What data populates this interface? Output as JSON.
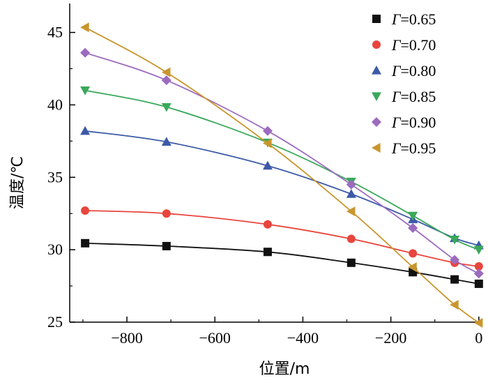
{
  "chart_data": {
    "type": "line",
    "xlabel": "位置/m",
    "ylabel": "温度/℃",
    "xlim": [
      -930,
      5
    ],
    "ylim": [
      25,
      47
    ],
    "xticks": [
      -800,
      -600,
      -400,
      -200,
      0
    ],
    "xtick_labels": [
      "−800",
      "−600",
      "−400",
      "−200",
      "0"
    ],
    "yticks": [
      25,
      30,
      35,
      40,
      45
    ],
    "ytick_labels": [
      "25",
      "30",
      "35",
      "40",
      "45"
    ],
    "grid": false,
    "legend_position": "top-right",
    "x": [
      -895,
      -710,
      -480,
      -290,
      -150,
      -55,
      0
    ],
    "series": [
      {
        "name": "Γ=0.65",
        "gamma_symbol": "Γ",
        "gamma_value": "=0.65",
        "color": "#111111",
        "marker": "square",
        "values": [
          30.45,
          30.25,
          29.85,
          29.1,
          28.45,
          27.95,
          27.65
        ]
      },
      {
        "name": "Γ=0.70",
        "gamma_symbol": "Γ",
        "gamma_value": "=0.70",
        "color": "#e8453c",
        "marker": "circle",
        "values": [
          32.7,
          32.5,
          31.75,
          30.75,
          29.75,
          29.1,
          28.85
        ]
      },
      {
        "name": "Γ=0.80",
        "gamma_symbol": "Γ",
        "gamma_value": "=0.80",
        "color": "#3d5aa8",
        "marker": "triangle-up",
        "values": [
          38.2,
          37.45,
          35.8,
          33.85,
          32.1,
          30.8,
          30.3
        ]
      },
      {
        "name": "Γ=0.85",
        "gamma_symbol": "Γ",
        "gamma_value": "=0.85",
        "color": "#3aa85a",
        "marker": "triangle-down",
        "values": [
          41.0,
          39.85,
          37.4,
          34.7,
          32.35,
          30.7,
          30.0
        ]
      },
      {
        "name": "Γ=0.90",
        "gamma_symbol": "Γ",
        "gamma_value": "=0.90",
        "color": "#9b6bbf",
        "marker": "diamond",
        "values": [
          43.6,
          41.7,
          38.2,
          34.5,
          31.5,
          29.3,
          28.35
        ]
      },
      {
        "name": "Γ=0.95",
        "gamma_symbol": "Γ",
        "gamma_value": "=0.95",
        "color": "#c9962d",
        "marker": "triangle-left",
        "values": [
          45.35,
          42.25,
          37.35,
          32.65,
          28.8,
          26.2,
          24.95
        ]
      }
    ]
  }
}
